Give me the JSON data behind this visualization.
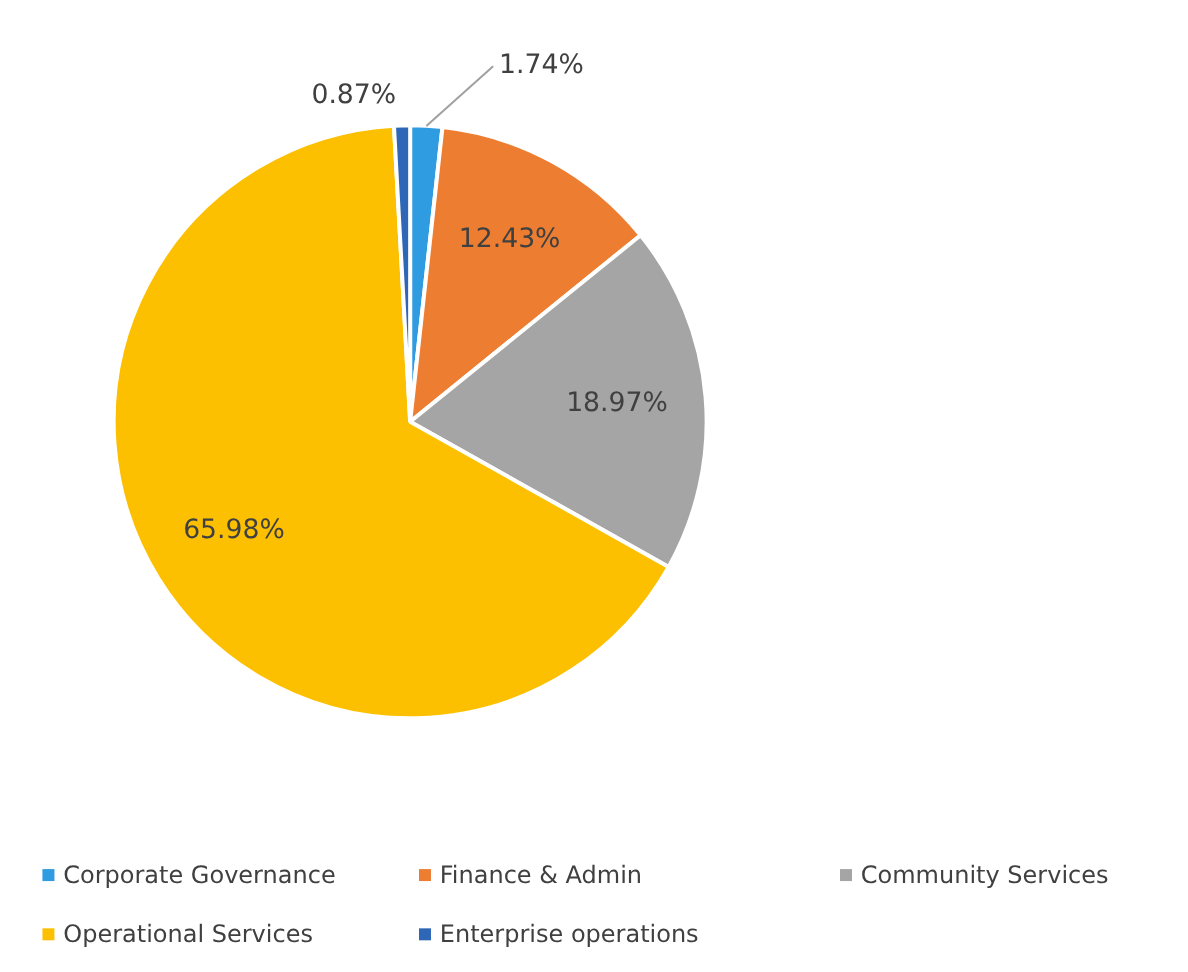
{
  "chart_data": {
    "type": "pie",
    "categories": [
      "Corporate Governance",
      "Finance & Admin",
      "Community Services",
      "Operational Services",
      "Enterprise operations"
    ],
    "values": [
      1.74,
      12.43,
      18.97,
      65.98,
      0.87
    ],
    "colors": [
      "#2f9be0",
      "#ed7d31",
      "#a5a5a5",
      "#fdc000",
      "#2e67b8"
    ],
    "value_labels": [
      "1.74%",
      "12.43%",
      "18.97%",
      "65.98%",
      "0.87%"
    ],
    "legend": "bottom"
  }
}
